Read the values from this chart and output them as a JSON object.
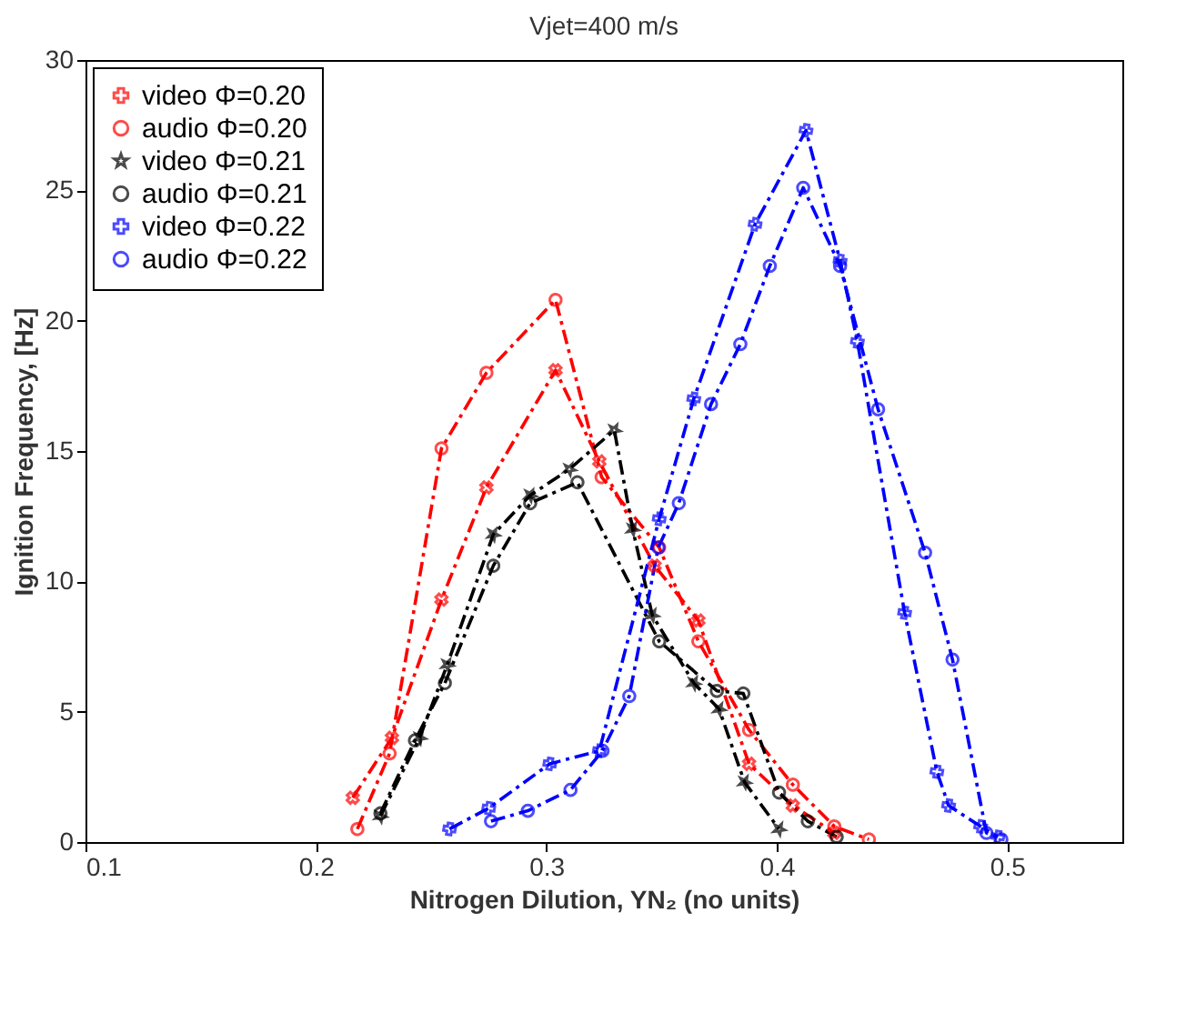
{
  "chart_data": {
    "type": "line",
    "title": "Vjet=400 m/s",
    "xlabel": "Nitrogen Dilution, YN₂ (no units)",
    "ylabel": "Ignition Frequency, [Hz]",
    "xlim": [
      0.1,
      0.55
    ],
    "xticks": [
      0.1,
      0.2,
      0.3,
      0.4,
      0.5
    ],
    "ylim": [
      0,
      30
    ],
    "yticks": [
      0,
      5,
      10,
      15,
      20,
      25,
      30
    ],
    "grid": false,
    "legend": "top left",
    "line_style": "dashed",
    "series": [
      {
        "name": "video Φ=0.20",
        "color": "#ff0000",
        "marker": "cross",
        "x": [
          0.216,
          0.233,
          0.2545,
          0.274,
          0.304,
          0.323,
          0.347,
          0.366,
          0.388,
          0.407,
          0.425
        ],
        "values": [
          1.7,
          4.0,
          9.3,
          13.6,
          18.1,
          14.6,
          10.6,
          8.5,
          3.0,
          1.4,
          0.35
        ]
      },
      {
        "name": "audio Φ=0.20",
        "color": "#ff0000",
        "marker": "circle",
        "x": [
          0.218,
          0.232,
          0.2545,
          0.274,
          0.304,
          0.324,
          0.349,
          0.366,
          0.388,
          0.407,
          0.425,
          0.44
        ],
        "values": [
          0.5,
          3.4,
          15.1,
          18.0,
          20.8,
          14.0,
          11.3,
          7.7,
          4.3,
          2.2,
          0.6,
          0.1
        ]
      },
      {
        "name": "video Φ=0.21",
        "color": "#000000",
        "marker": "star",
        "x": [
          0.228,
          0.245,
          0.257,
          0.277,
          0.293,
          0.31,
          0.3295,
          0.3375,
          0.346,
          0.364,
          0.375,
          0.386,
          0.401
        ],
        "values": [
          1.0,
          4.0,
          6.8,
          11.8,
          13.3,
          14.3,
          15.8,
          12.0,
          8.7,
          6.1,
          5.1,
          2.3,
          0.5
        ]
      },
      {
        "name": "audio Φ=0.21",
        "color": "#000000",
        "marker": "circle",
        "x": [
          0.228,
          0.243,
          0.256,
          0.277,
          0.293,
          0.3135,
          0.349,
          0.374,
          0.3855,
          0.401,
          0.4135,
          0.426
        ],
        "values": [
          1.1,
          3.9,
          6.1,
          10.6,
          13.0,
          13.8,
          7.7,
          5.8,
          5.7,
          1.9,
          0.8,
          0.2
        ]
      },
      {
        "name": "video Φ=0.22",
        "color": "#0000ff",
        "marker": "cross",
        "x": [
          0.258,
          0.275,
          0.3015,
          0.323,
          0.349,
          0.364,
          0.3906,
          0.4127,
          0.4275,
          0.435,
          0.4555,
          0.4695,
          0.4746,
          0.4885,
          0.496
        ],
        "values": [
          0.5,
          1.3,
          3.0,
          3.5,
          12.4,
          17.0,
          23.7,
          27.3,
          22.3,
          19.2,
          8.8,
          2.7,
          1.4,
          0.6,
          0.2
        ]
      },
      {
        "name": "audio Φ=0.22",
        "color": "#0000ff",
        "marker": "circle",
        "x": [
          0.276,
          0.292,
          0.3105,
          0.3244,
          0.336,
          0.3486,
          0.3575,
          0.3715,
          0.3842,
          0.397,
          0.4115,
          0.4275,
          0.444,
          0.4644,
          0.4763,
          0.491,
          0.4975
        ],
        "values": [
          0.8,
          1.2,
          2.0,
          3.5,
          5.6,
          11.3,
          13.0,
          16.8,
          19.1,
          22.1,
          25.1,
          22.1,
          16.6,
          11.1,
          7.0,
          0.35,
          0.1
        ]
      }
    ]
  }
}
